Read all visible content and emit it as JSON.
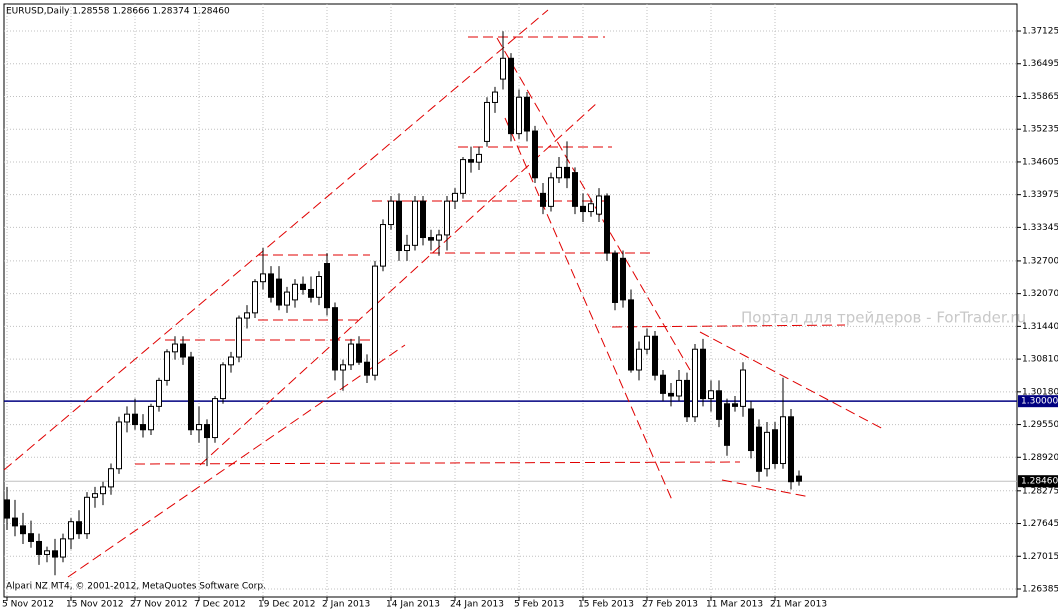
{
  "header": "EURUSD,Daily  1.28558 1.28666 1.28374 1.28460",
  "footer": "Alpari NZ MT4, © 2001-2012, MetaQuotes Software Corp.",
  "watermark": "Портал для трейдеров - ForTrader.ru",
  "chart_data": {
    "type": "candlestick",
    "categories": [
      "5 Nov 2012",
      null,
      null,
      null,
      null,
      null,
      null,
      null,
      "15 Nov 2012",
      null,
      null,
      null,
      null,
      null,
      null,
      null,
      "27 Nov 2012",
      null,
      null,
      null,
      null,
      null,
      null,
      null,
      "7 Dec 2012",
      null,
      null,
      null,
      null,
      null,
      null,
      null,
      "19 Dec 2012",
      null,
      null,
      null,
      null,
      null,
      null,
      null,
      "2 Jan 2013",
      null,
      null,
      null,
      null,
      null,
      null,
      null,
      "14 Jan 2013",
      null,
      null,
      null,
      null,
      null,
      null,
      null,
      "24 Jan 2013",
      null,
      null,
      null,
      null,
      null,
      null,
      null,
      "5 Feb 2013",
      null,
      null,
      null,
      null,
      null,
      null,
      null,
      "15 Feb 2013",
      null,
      null,
      null,
      null,
      null,
      null,
      null,
      "27 Feb 2013",
      null,
      null,
      null,
      null,
      null,
      null,
      null,
      "11 Mar 2013",
      null,
      null,
      null,
      null,
      null,
      null,
      null,
      "21 Mar 2013",
      null,
      null,
      null
    ],
    "open": [
      1.281,
      1.2775,
      1.276,
      1.2745,
      1.273,
      1.2705,
      1.2712,
      1.27,
      1.2735,
      1.2768,
      1.2745,
      1.2815,
      1.2822,
      1.2835,
      1.287,
      1.296,
      1.2975,
      1.2955,
      1.2945,
      1.299,
      1.304,
      1.3095,
      1.311,
      1.3085,
      1.2945,
      1.2955,
      1.293,
      1.3005,
      1.307,
      1.3085,
      1.316,
      1.317,
      1.323,
      1.3245,
      1.3235,
      1.3185,
      1.3195,
      1.3225,
      1.3215,
      1.32,
      1.3265,
      1.318,
      1.306,
      1.307,
      1.311,
      1.3075,
      1.305,
      1.326,
      1.334,
      1.3385,
      1.329,
      1.33,
      1.3385,
      1.3315,
      1.331,
      1.332,
      1.3385,
      1.34,
      1.3465,
      1.346,
      1.35,
      1.3575,
      1.362,
      1.366,
      1.3515,
      1.3585,
      1.352,
      1.34,
      1.3375,
      1.343,
      1.345,
      1.344,
      1.3375,
      1.3365,
      1.336,
      1.3395,
      1.3285,
      1.3275,
      1.3195,
      1.306,
      1.31,
      1.3125,
      1.305,
      1.3015,
      1.301,
      1.304,
      1.297,
      1.31,
      1.3005,
      1.302,
      1.2995,
      1.2995,
      1.299,
      1.2985,
      1.295,
      1.287,
      1.2945,
      1.288,
      1.297,
      1.28558
    ],
    "high": [
      1.2835,
      1.281,
      1.2785,
      1.277,
      1.2745,
      1.272,
      1.2735,
      1.2745,
      1.2775,
      1.279,
      1.2825,
      1.2835,
      1.2845,
      1.288,
      1.297,
      1.299,
      1.3005,
      1.2975,
      1.2995,
      1.3045,
      1.31,
      1.3125,
      1.3125,
      1.3095,
      1.299,
      1.2965,
      1.301,
      1.3075,
      1.3095,
      1.3165,
      1.3185,
      1.3235,
      1.3295,
      1.326,
      1.326,
      1.322,
      1.3235,
      1.324,
      1.324,
      1.325,
      1.3285,
      1.319,
      1.308,
      1.312,
      1.3125,
      1.309,
      1.327,
      1.335,
      1.3395,
      1.34,
      1.332,
      1.3395,
      1.3395,
      1.333,
      1.333,
      1.3395,
      1.341,
      1.347,
      1.349,
      1.349,
      1.3585,
      1.3605,
      1.3712,
      1.367,
      1.36,
      1.3595,
      1.353,
      1.342,
      1.344,
      1.347,
      1.35,
      1.345,
      1.34,
      1.339,
      1.341,
      1.34,
      1.329,
      1.329,
      1.3215,
      1.3115,
      1.314,
      1.3135,
      1.306,
      1.3035,
      1.306,
      1.3055,
      1.311,
      1.312,
      1.304,
      1.304,
      1.3005,
      1.301,
      1.3075,
      1.3,
      1.2965,
      1.296,
      1.296,
      1.3045,
      1.2985,
      1.28666
    ],
    "low": [
      1.2752,
      1.274,
      1.2725,
      1.2718,
      1.2685,
      1.269,
      1.2665,
      1.269,
      1.2715,
      1.2735,
      1.2735,
      1.2795,
      1.28,
      1.282,
      1.286,
      1.294,
      1.2945,
      1.293,
      1.2935,
      1.298,
      1.303,
      1.308,
      1.307,
      1.2935,
      1.292,
      1.2875,
      1.292,
      1.2995,
      1.3055,
      1.3075,
      1.314,
      1.316,
      1.3215,
      1.319,
      1.3175,
      1.317,
      1.318,
      1.3205,
      1.319,
      1.3185,
      1.3165,
      1.304,
      1.302,
      1.306,
      1.307,
      1.3035,
      1.304,
      1.325,
      1.333,
      1.327,
      1.327,
      1.329,
      1.33,
      1.329,
      1.328,
      1.329,
      1.337,
      1.339,
      1.344,
      1.3445,
      1.349,
      1.3555,
      1.36,
      1.35,
      1.3505,
      1.35,
      1.342,
      1.336,
      1.3365,
      1.342,
      1.341,
      1.336,
      1.3345,
      1.3355,
      1.3345,
      1.327,
      1.3175,
      1.318,
      1.3055,
      1.304,
      1.309,
      1.304,
      1.3,
      1.299,
      1.3,
      1.296,
      1.296,
      1.299,
      1.298,
      1.295,
      1.2895,
      1.298,
      1.297,
      1.289,
      1.2845,
      1.2855,
      1.287,
      1.287,
      1.283,
      1.28374
    ],
    "close": [
      1.2775,
      1.276,
      1.2745,
      1.273,
      1.2705,
      1.2712,
      1.27,
      1.2735,
      1.2768,
      1.2745,
      1.2815,
      1.2822,
      1.2835,
      1.287,
      1.296,
      1.2975,
      1.2955,
      1.2945,
      1.299,
      1.304,
      1.3095,
      1.311,
      1.3085,
      1.2945,
      1.2955,
      1.293,
      1.3005,
      1.307,
      1.3085,
      1.316,
      1.317,
      1.323,
      1.3245,
      1.32,
      1.3185,
      1.321,
      1.3225,
      1.3215,
      1.32,
      1.324,
      1.318,
      1.306,
      1.307,
      1.311,
      1.3075,
      1.305,
      1.326,
      1.334,
      1.3385,
      1.329,
      1.33,
      1.3385,
      1.3315,
      1.331,
      1.332,
      1.3385,
      1.34,
      1.3465,
      1.346,
      1.3475,
      1.3575,
      1.3595,
      1.366,
      1.3515,
      1.3585,
      1.352,
      1.343,
      1.3375,
      1.343,
      1.345,
      1.343,
      1.3375,
      1.3365,
      1.338,
      1.3395,
      1.3285,
      1.319,
      1.3195,
      1.306,
      1.31,
      1.3125,
      1.305,
      1.3015,
      1.301,
      1.304,
      1.297,
      1.31,
      1.3005,
      1.302,
      1.2965,
      1.2915,
      1.299,
      1.306,
      1.2905,
      1.2865,
      1.294,
      1.288,
      1.297,
      1.2845,
      1.2846
    ],
    "bull_color": "#ffffff",
    "bear_color": "#000000",
    "ylim": [
      1.26231,
      1.37645
    ],
    "yticks": [
      {
        "value": 1.26385,
        "label": "1.26385"
      },
      {
        "value": 1.27015,
        "label": "1.27015"
      },
      {
        "value": 1.27645,
        "label": "1.27645"
      },
      {
        "value": 1.28275,
        "label": "1.28275"
      },
      {
        "value": 1.2892,
        "label": "1.28920"
      },
      {
        "value": 1.2955,
        "label": "1.29550"
      },
      {
        "value": 1.3018,
        "label": "1.30180"
      },
      {
        "value": 1.3081,
        "label": "1.30810"
      },
      {
        "value": 1.3144,
        "label": "1.31440"
      },
      {
        "value": 1.3207,
        "label": "1.32070"
      },
      {
        "value": 1.327,
        "label": "1.32700"
      },
      {
        "value": 1.33345,
        "label": "1.33345"
      },
      {
        "value": 1.33975,
        "label": "1.33975"
      },
      {
        "value": 1.34605,
        "label": "1.34605"
      },
      {
        "value": 1.35235,
        "label": "1.35235"
      },
      {
        "value": 1.35865,
        "label": "1.35865"
      },
      {
        "value": 1.36495,
        "label": "1.36495"
      },
      {
        "value": 1.37125,
        "label": "1.37125"
      }
    ],
    "grid": true,
    "hline": {
      "value": 1.3,
      "label": "1.30000",
      "color": "#000080"
    },
    "current_price": {
      "value": 1.2846,
      "label": "1.28460",
      "color": "#c0c0c0"
    }
  }
}
